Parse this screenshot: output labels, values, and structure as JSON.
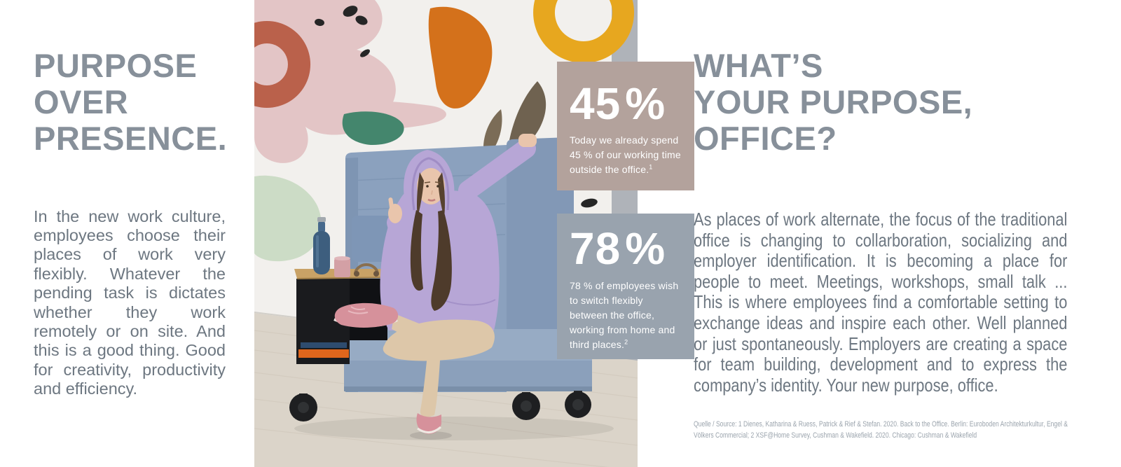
{
  "colors": {
    "heading": "#87909A",
    "body_text": "#6D7781",
    "stat_card_taupe": "#B3A29C",
    "stat_card_gray": "#99A3AE",
    "stat_text": "#FFFFFF",
    "source_text": "#9BA4AD"
  },
  "left": {
    "heading_lines": [
      "PURPOSE",
      "OVER",
      "PRESENCE."
    ],
    "body": "In the new work culture, employees choose their places of work very flexibly. Whatever the pending task is dictates whether they work remotely or on site. And this is a good thing. Good for creativity, productivity and efficiency."
  },
  "stats": [
    {
      "value": "45",
      "unit": "%",
      "caption": "Today we already spend 45 % of our working time outside the office.",
      "footnote": "1"
    },
    {
      "value": "78",
      "unit": "%",
      "caption": "78 % of employees wish to switch flexibly between the office, working from home and third places.",
      "footnote": "2"
    }
  ],
  "right": {
    "heading_lines": [
      "WHAT’S",
      "YOUR PURPOSE,",
      "OFFICE?"
    ],
    "body": "As places of work alternate, the focus of the traditional office is changing to collarboration, socializing and employer identification. It is becoming a place for people to meet. Meetings, workshops, small talk ... This is where employees find a comfortable setting to exchange ideas and inspire each other. Well planned or just spontaneously. Employers are creating a space for team building, development and to express the company’s identity. Your new purpose, office.",
    "source": "Quelle / Source:  1 Dienes, Katharina & Ruess, Patrick & Rief & Stefan. 2020. Back to the Office. Berlin: Euroboden Architekturkultur, Engel & Völkers Commercial;  2 XSF@Home Survey, Cushman & Wakefield. 2020. Chicago: Cushman & Wakefield"
  },
  "photo": {
    "alt": "Woman in a lavender hoodie sitting cross-legged in a light blue high-back acoustic armchair with attached side table, in front of a white wall painted with abstract mural shapes"
  }
}
